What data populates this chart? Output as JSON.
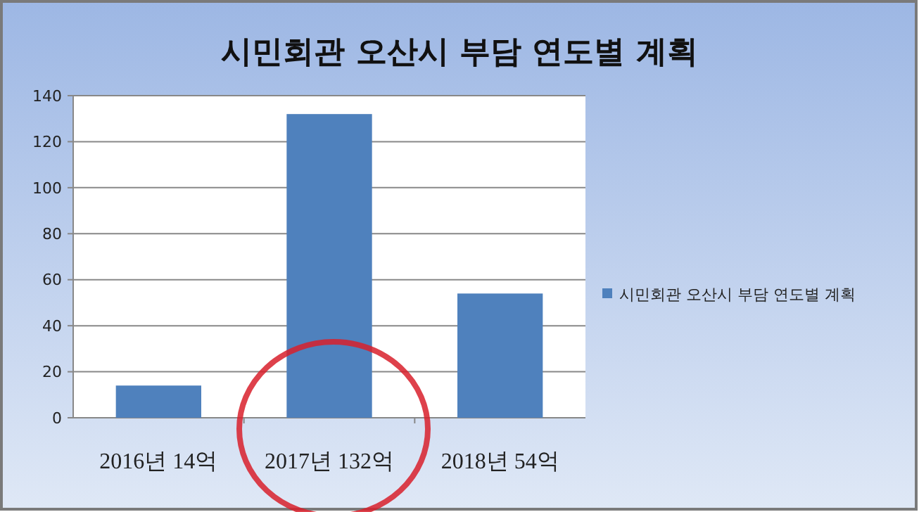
{
  "chart_data": {
    "type": "bar",
    "title": "시민회관 오산시 부담 연도별 계획",
    "categories": [
      "2016년 14억",
      "2017년 132억",
      "2018년 54억"
    ],
    "series": [
      {
        "name": "시민회관 오산시 부담 연도별 계획",
        "color": "#4f81bd",
        "values": [
          14,
          132,
          54
        ]
      }
    ],
    "ylim": [
      0,
      140
    ],
    "yticks": [
      0,
      20,
      40,
      60,
      80,
      100,
      120,
      140
    ],
    "grid": "y",
    "legend": "right"
  }
}
